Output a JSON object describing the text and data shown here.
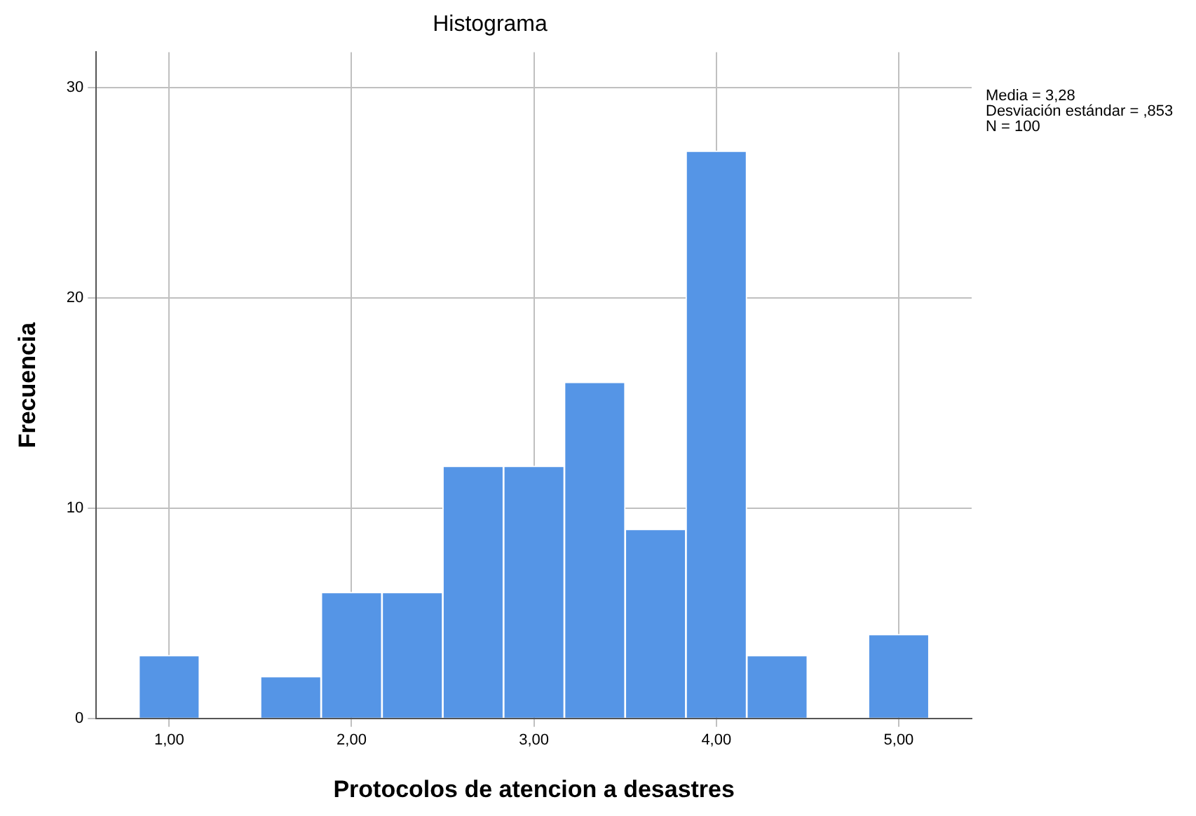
{
  "chart_data": {
    "type": "histogram",
    "title": "Histograma",
    "xlabel": "Protocolos de atencion a desastres",
    "ylabel": "Frecuencia",
    "bins": [
      0.8333,
      1.1667,
      1.5,
      1.8333,
      2.1667,
      2.5,
      2.8333,
      3.1667,
      3.5,
      3.8333,
      4.1667,
      4.5,
      4.8333,
      5.1667
    ],
    "values": [
      3,
      0,
      2,
      6,
      6,
      12,
      12,
      16,
      9,
      27,
      3,
      0,
      4
    ],
    "color": "#5595e6",
    "xlim": [
      0.6,
      5.4
    ],
    "ylim": [
      0,
      31.7
    ],
    "xticks": [
      {
        "value": 1,
        "label": "1,00"
      },
      {
        "value": 2,
        "label": "2,00"
      },
      {
        "value": 3,
        "label": "3,00"
      },
      {
        "value": 4,
        "label": "4,00"
      },
      {
        "value": 5,
        "label": "5,00"
      }
    ],
    "yticks": [
      0,
      10,
      20,
      30
    ],
    "grid": true,
    "legend": false,
    "annotations": [
      "Media = 3,28",
      "Desviación estándar = ,853",
      "N = 100"
    ]
  }
}
